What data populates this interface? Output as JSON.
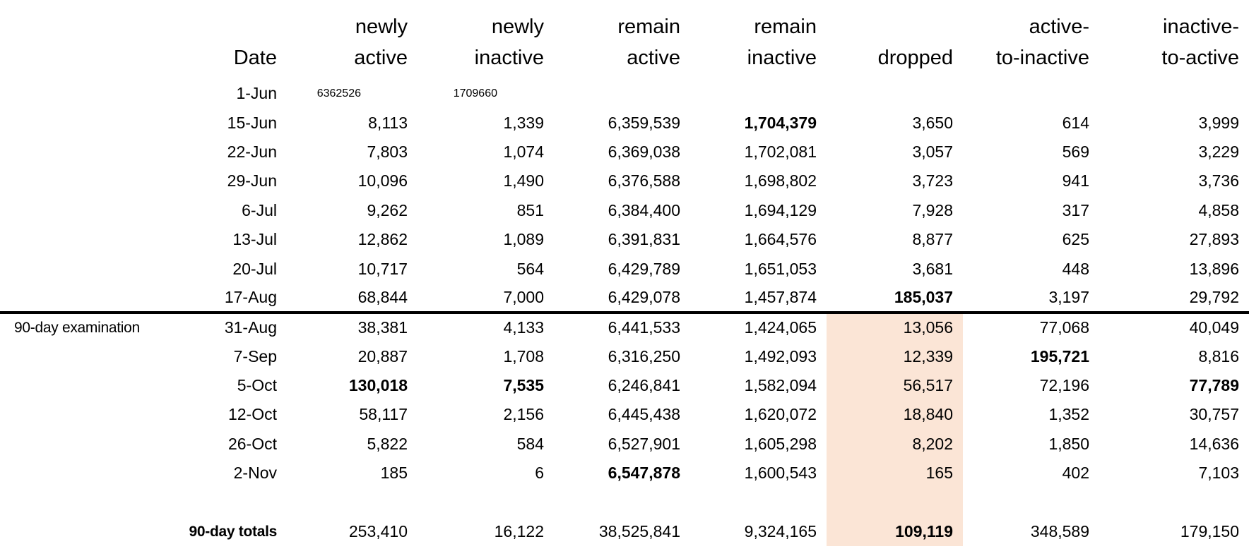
{
  "styles": {
    "highlight_color": "#FBE5D6",
    "divider_color": "#000000",
    "text_color": "#000000",
    "background_color": "#FFFFFF"
  },
  "table": {
    "annotation_label": "90-day examination",
    "header": [
      {
        "key": "date",
        "line1": "",
        "line2": "Date"
      },
      {
        "key": "newly-active",
        "line1": "newly",
        "line2": "active"
      },
      {
        "key": "newly-inactive",
        "line1": "newly",
        "line2": "inactive"
      },
      {
        "key": "remain-active",
        "line1": "remain",
        "line2": "active"
      },
      {
        "key": "remain-inactive",
        "line1": "remain",
        "line2": "inactive"
      },
      {
        "key": "dropped",
        "line1": "",
        "line2": "dropped"
      },
      {
        "key": "active-to-inactive",
        "line1": "active-",
        "line2": "to-inactive"
      },
      {
        "key": "inactive-to-active",
        "line1": "inactive-",
        "line2": "to-active"
      }
    ],
    "rows": [
      {
        "annotation": "",
        "date": "1-Jun",
        "cells": [
          "6362526",
          "1709660",
          "",
          "",
          "",
          "",
          ""
        ],
        "bold": [],
        "small": true,
        "divider_after": false,
        "highlight": false,
        "totals": false
      },
      {
        "annotation": "",
        "date": "15-Jun",
        "cells": [
          "8,113",
          "1,339",
          "6,359,539",
          "1,704,379",
          "3,650",
          "614",
          "3,999"
        ],
        "bold": [
          3
        ],
        "small": false,
        "divider_after": false,
        "highlight": false,
        "totals": false
      },
      {
        "annotation": "",
        "date": "22-Jun",
        "cells": [
          "7,803",
          "1,074",
          "6,369,038",
          "1,702,081",
          "3,057",
          "569",
          "3,229"
        ],
        "bold": [],
        "small": false,
        "divider_after": false,
        "highlight": false,
        "totals": false
      },
      {
        "annotation": "",
        "date": "29-Jun",
        "cells": [
          "10,096",
          "1,490",
          "6,376,588",
          "1,698,802",
          "3,723",
          "941",
          "3,736"
        ],
        "bold": [],
        "small": false,
        "divider_after": false,
        "highlight": false,
        "totals": false
      },
      {
        "annotation": "",
        "date": "6-Jul",
        "cells": [
          "9,262",
          "851",
          "6,384,400",
          "1,694,129",
          "7,928",
          "317",
          "4,858"
        ],
        "bold": [],
        "small": false,
        "divider_after": false,
        "highlight": false,
        "totals": false
      },
      {
        "annotation": "",
        "date": "13-Jul",
        "cells": [
          "12,862",
          "1,089",
          "6,391,831",
          "1,664,576",
          "8,877",
          "625",
          "27,893"
        ],
        "bold": [],
        "small": false,
        "divider_after": false,
        "highlight": false,
        "totals": false
      },
      {
        "annotation": "",
        "date": "20-Jul",
        "cells": [
          "10,717",
          "564",
          "6,429,789",
          "1,651,053",
          "3,681",
          "448",
          "13,896"
        ],
        "bold": [],
        "small": false,
        "divider_after": false,
        "highlight": false,
        "totals": false
      },
      {
        "annotation": "",
        "date": "17-Aug",
        "cells": [
          "68,844",
          "7,000",
          "6,429,078",
          "1,457,874",
          "185,037",
          "3,197",
          "29,792"
        ],
        "bold": [
          4
        ],
        "small": false,
        "divider_after": true,
        "highlight": false,
        "totals": false
      },
      {
        "annotation": "90-day examination",
        "date": "31-Aug",
        "cells": [
          "38,381",
          "4,133",
          "6,441,533",
          "1,424,065",
          "13,056",
          "77,068",
          "40,049"
        ],
        "bold": [],
        "small": false,
        "divider_after": false,
        "highlight": true,
        "totals": false
      },
      {
        "annotation": "",
        "date": "7-Sep",
        "cells": [
          "20,887",
          "1,708",
          "6,316,250",
          "1,492,093",
          "12,339",
          "195,721",
          "8,816"
        ],
        "bold": [
          5
        ],
        "small": false,
        "divider_after": false,
        "highlight": true,
        "totals": false
      },
      {
        "annotation": "",
        "date": "5-Oct",
        "cells": [
          "130,018",
          "7,535",
          "6,246,841",
          "1,582,094",
          "56,517",
          "72,196",
          "77,789"
        ],
        "bold": [
          0,
          1,
          6
        ],
        "small": false,
        "divider_after": false,
        "highlight": true,
        "totals": false
      },
      {
        "annotation": "",
        "date": "12-Oct",
        "cells": [
          "58,117",
          "2,156",
          "6,445,438",
          "1,620,072",
          "18,840",
          "1,352",
          "30,757"
        ],
        "bold": [],
        "small": false,
        "divider_after": false,
        "highlight": true,
        "totals": false
      },
      {
        "annotation": "",
        "date": "26-Oct",
        "cells": [
          "5,822",
          "584",
          "6,527,901",
          "1,605,298",
          "8,202",
          "1,850",
          "14,636"
        ],
        "bold": [],
        "small": false,
        "divider_after": false,
        "highlight": true,
        "totals": false
      },
      {
        "annotation": "",
        "date": "2-Nov",
        "cells": [
          "185",
          "6",
          "6,547,878",
          "1,600,543",
          "165",
          "402",
          "7,103"
        ],
        "bold": [
          2
        ],
        "small": false,
        "divider_after": false,
        "highlight": true,
        "totals": false
      },
      {
        "annotation": "",
        "date": "",
        "cells": [
          "",
          "",
          "",
          "",
          "",
          "",
          ""
        ],
        "bold": [],
        "small": false,
        "divider_after": false,
        "highlight": true,
        "totals": false
      },
      {
        "annotation": "",
        "date": "90-day totals",
        "cells": [
          "253,410",
          "16,122",
          "38,525,841",
          "9,324,165",
          "109,119",
          "348,589",
          "179,150"
        ],
        "bold": [
          4
        ],
        "small": false,
        "divider_after": false,
        "highlight": true,
        "totals": true
      }
    ]
  }
}
